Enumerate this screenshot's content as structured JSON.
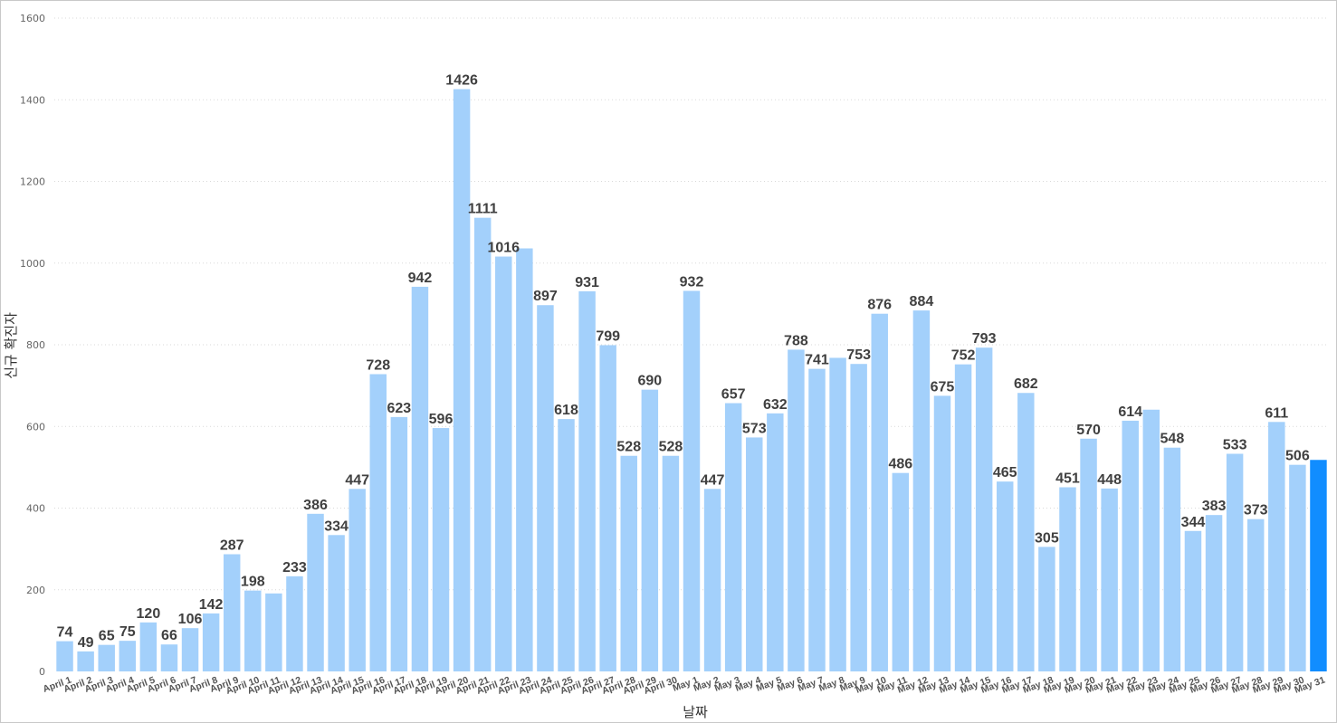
{
  "chart_data": {
    "type": "bar",
    "title": "",
    "xlabel": "날짜",
    "ylabel": "신규 확진자",
    "ylim": [
      0,
      1600
    ],
    "yticks": [
      0,
      200,
      400,
      600,
      800,
      1000,
      1200,
      1400,
      1600
    ],
    "grid": true,
    "colors": {
      "bar": "#a3d0fb",
      "highlight": "#118dff"
    },
    "highlighted_category": "May 31",
    "categories": [
      "April 1",
      "April 2",
      "April 3",
      "April 4",
      "April 5",
      "April 6",
      "April 7",
      "April 8",
      "April 9",
      "April 10",
      "April 11",
      "April 12",
      "April 13",
      "April 14",
      "April 15",
      "April 16",
      "April 17",
      "April 18",
      "April 19",
      "April 20",
      "April 21",
      "April 22",
      "April 23",
      "April 24",
      "April 25",
      "April 26",
      "April 27",
      "April 28",
      "April 29",
      "April 30",
      "May 1",
      "May 2",
      "May 3",
      "May 4",
      "May 5",
      "May 6",
      "May 7",
      "May 8",
      "May 9",
      "May 10",
      "May 11",
      "May 12",
      "May 13",
      "May 14",
      "May 15",
      "May 16",
      "May 17",
      "May 18",
      "May 19",
      "May 20",
      "May 21",
      "May 22",
      "May 23",
      "May 24",
      "May 25",
      "May 26",
      "May 27",
      "May 28",
      "May 29",
      "May 30",
      "May 31"
    ],
    "values": [
      74,
      49,
      65,
      75,
      120,
      66,
      106,
      142,
      287,
      198,
      191,
      233,
      386,
      334,
      447,
      728,
      623,
      942,
      596,
      1426,
      1111,
      1016,
      1036,
      897,
      618,
      931,
      799,
      528,
      690,
      528,
      932,
      447,
      657,
      573,
      632,
      788,
      741,
      768,
      753,
      876,
      486,
      884,
      675,
      752,
      793,
      465,
      682,
      305,
      451,
      570,
      448,
      614,
      641,
      548,
      344,
      383,
      533,
      373,
      611,
      506,
      518
    ],
    "data_labels": [
      "74",
      "49",
      "65",
      "75",
      "120",
      "66",
      "106",
      "142",
      "287",
      "198",
      null,
      "233",
      "386",
      "334",
      "447",
      "728",
      "623",
      "942",
      "596",
      "1426",
      "1111",
      "1016",
      null,
      "897",
      "618",
      "931",
      "799",
      "528",
      "690",
      "528",
      "932",
      "447",
      "657",
      "573",
      "632",
      "788",
      "741",
      null,
      "753",
      "876",
      "486",
      "884",
      "675",
      "752",
      "793",
      "465",
      "682",
      "305",
      "451",
      "570",
      "448",
      "614",
      null,
      "548",
      "344",
      "383",
      "533",
      "373",
      "611",
      "506",
      null
    ]
  }
}
